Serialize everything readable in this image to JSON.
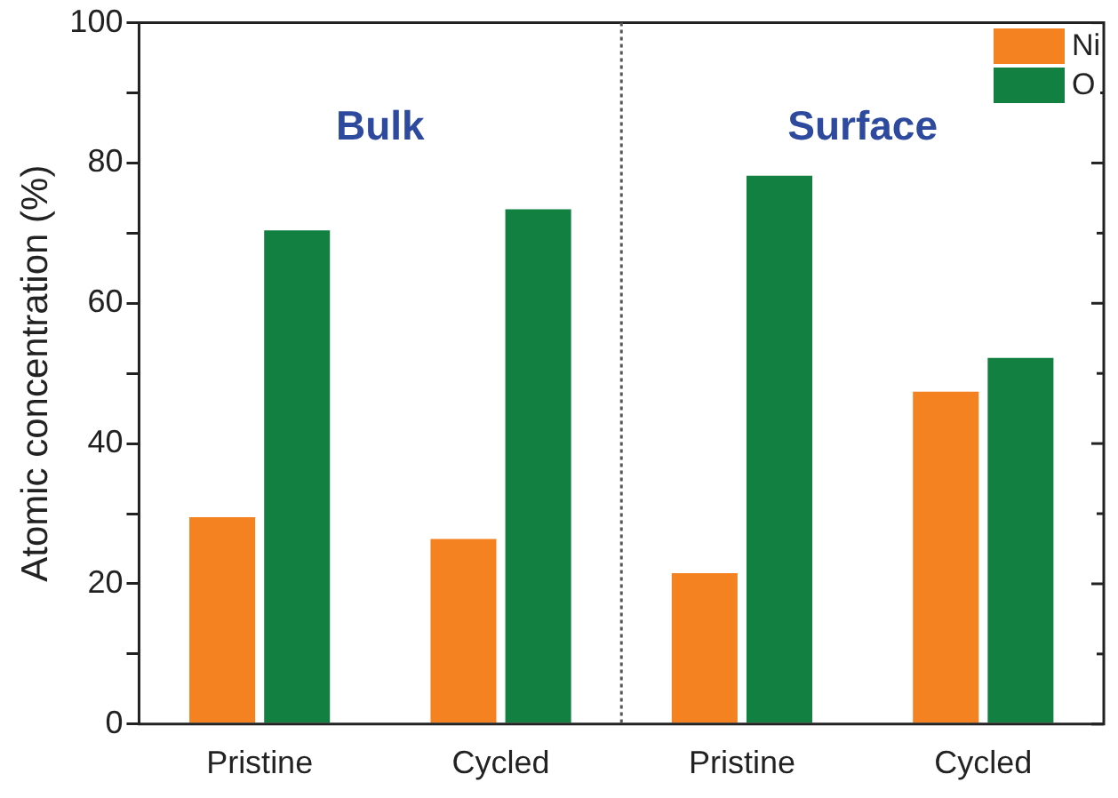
{
  "chart_data": {
    "type": "bar",
    "ylabel": "Atomic concentration (%)",
    "categories": [
      "Pristine",
      "Cycled",
      "Pristine",
      "Cycled"
    ],
    "series": [
      {
        "name": "Ni",
        "color": "#f58220",
        "values": [
          29.5,
          26.4,
          21.5,
          47.4
        ]
      },
      {
        "name": "O",
        "color": "#118040",
        "values": [
          70.4,
          73.4,
          78.2,
          52.2
        ]
      }
    ],
    "ylim": [
      0,
      100
    ],
    "yticks": [
      0,
      {
        "value": 10,
        "label": null
      },
      20,
      {
        "value": 30,
        "label": null
      },
      40,
      {
        "value": 50,
        "label": null
      },
      60,
      {
        "value": 70,
        "label": null
      },
      80,
      {
        "value": 90,
        "label": null
      },
      100
    ],
    "annotations": [
      "Bulk",
      "Surface"
    ],
    "legend": "top right"
  }
}
